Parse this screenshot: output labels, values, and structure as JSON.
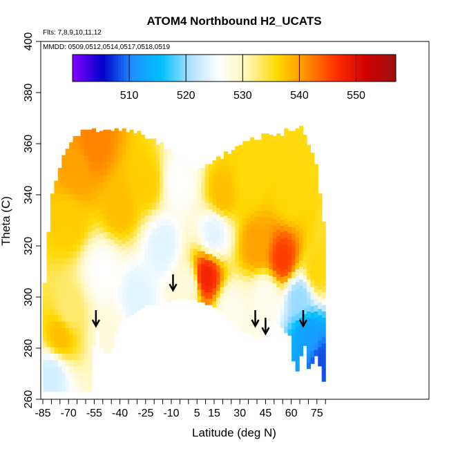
{
  "chart_data": {
    "type": "heatmap",
    "title": "ATOM4 Northbound H2_UCATS",
    "subtitle_flights": "Flts: 7,8,9,10,11,12",
    "subtitle_dates": "MMDD: 0509,0512,0514,0517,0518,0519",
    "xlabel": "Latitude (deg N)",
    "ylabel": "Theta (C)",
    "xlim": [
      -88,
      85
    ],
    "ylim": [
      260,
      400
    ],
    "x_ticks": [
      -85,
      -70,
      -55,
      -40,
      -25,
      -10,
      5,
      15,
      30,
      45,
      60,
      75
    ],
    "y_ticks": [
      260,
      280,
      300,
      320,
      340,
      360,
      380,
      400
    ],
    "grid": false,
    "colorbar": {
      "placement": "top-inside",
      "range": [
        500,
        557
      ],
      "ticks": [
        510,
        520,
        530,
        540,
        550
      ],
      "colors": [
        "#7f00ff",
        "#0000c8",
        "#1e90ff",
        "#00bfff",
        "#b0e0ff",
        "#ffffff",
        "#fff5b0",
        "#ffd700",
        "#ff8c00",
        "#ff3000",
        "#d00000",
        "#a01010"
      ]
    },
    "cell_fields": [
      {
        "lat": -80,
        "theta": 270,
        "value": 523
      },
      {
        "lat": -75,
        "theta": 285,
        "value": 538
      },
      {
        "lat": -70,
        "theta": 295,
        "value": 533
      },
      {
        "lat": -70,
        "theta": 330,
        "value": 537
      },
      {
        "lat": -65,
        "theta": 350,
        "value": 540
      },
      {
        "lat": -55,
        "theta": 360,
        "value": 542
      },
      {
        "lat": -50,
        "theta": 310,
        "value": 526
      },
      {
        "lat": -45,
        "theta": 285,
        "value": 528
      },
      {
        "lat": -40,
        "theta": 335,
        "value": 538
      },
      {
        "lat": -30,
        "theta": 300,
        "value": 524
      },
      {
        "lat": -25,
        "theta": 345,
        "value": 537
      },
      {
        "lat": -15,
        "theta": 320,
        "value": 524
      },
      {
        "lat": -5,
        "theta": 345,
        "value": 526
      },
      {
        "lat": 0,
        "theta": 305,
        "value": 528
      },
      {
        "lat": 10,
        "theta": 308,
        "value": 548
      },
      {
        "lat": 15,
        "theta": 325,
        "value": 524
      },
      {
        "lat": 20,
        "theta": 340,
        "value": 538
      },
      {
        "lat": 25,
        "theta": 295,
        "value": 527
      },
      {
        "lat": 35,
        "theta": 345,
        "value": 536
      },
      {
        "lat": 40,
        "theta": 320,
        "value": 540
      },
      {
        "lat": 45,
        "theta": 300,
        "value": 527
      },
      {
        "lat": 55,
        "theta": 315,
        "value": 546
      },
      {
        "lat": 60,
        "theta": 340,
        "value": 536
      },
      {
        "lat": 65,
        "theta": 300,
        "value": 520
      },
      {
        "lat": 70,
        "theta": 285,
        "value": 512
      },
      {
        "lat": 75,
        "theta": 310,
        "value": 536
      },
      {
        "lat": 78,
        "theta": 275,
        "value": 508
      }
    ],
    "arrows": [
      {
        "lat": -54,
        "theta": 290
      },
      {
        "lat": -9,
        "theta": 304
      },
      {
        "lat": 39,
        "theta": 290
      },
      {
        "lat": 45,
        "theta": 287
      },
      {
        "lat": 67,
        "theta": 290
      }
    ]
  }
}
